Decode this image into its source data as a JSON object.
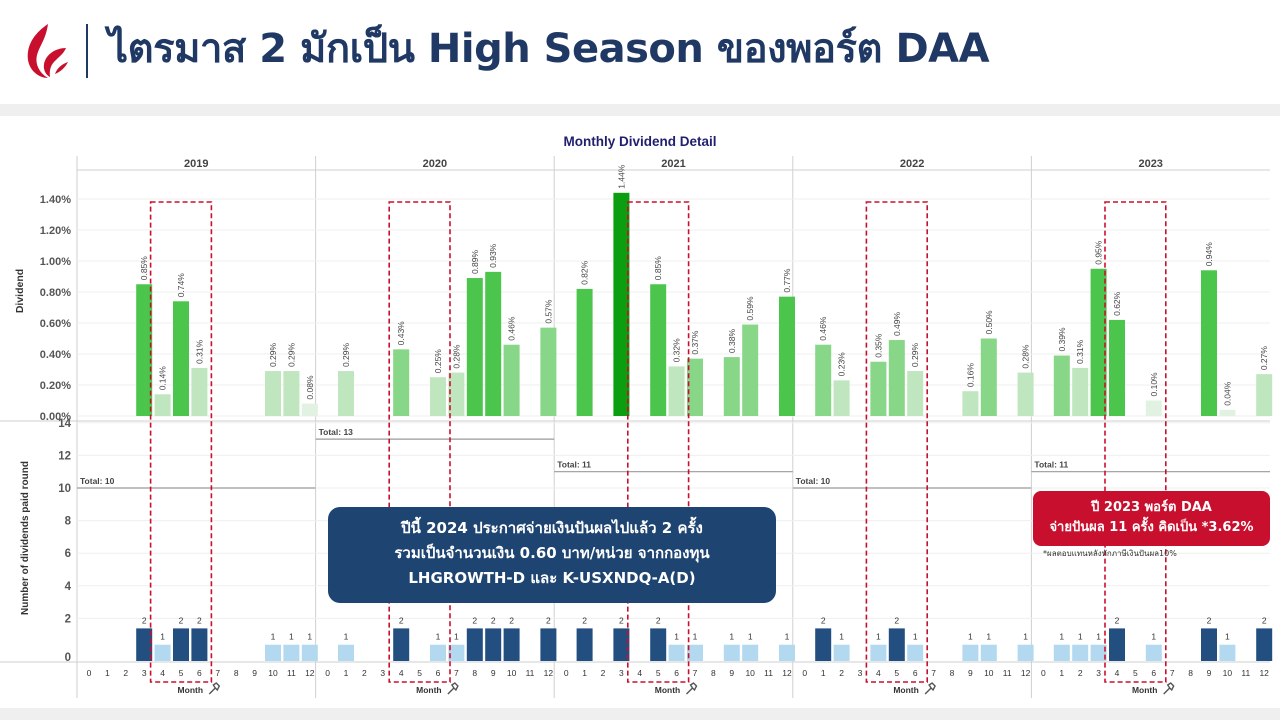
{
  "header": {
    "title": "ไตรมาส 2 มักเป็น High Season ของพอร์ต DAA"
  },
  "colors": {
    "title": "#1f3864",
    "logo": "#c8102e",
    "bar_green_dark": "#0a9e10",
    "bar_green": "#4cc54c",
    "bar_green_light": "#88d688",
    "bar_green_pale": "#bfe6bf",
    "bar_green_faint": "#e2f2e2",
    "count_dark": "#234e80",
    "count_light": "#b3d9f0",
    "highlight": "#c8102e"
  },
  "chart_data": {
    "type": "bar",
    "title": "Monthly Dividend Detail",
    "years": [
      "2019",
      "2020",
      "2021",
      "2022",
      "2023"
    ],
    "month_ticks": [
      "0",
      "1",
      "2",
      "3",
      "4",
      "5",
      "6",
      "7",
      "8",
      "9",
      "10",
      "11",
      "12"
    ],
    "xlabel": "Month",
    "top_panel": {
      "ylabel": "Dividend",
      "y_ticks": [
        "0.00%",
        "0.20%",
        "0.40%",
        "0.60%",
        "0.80%",
        "1.00%",
        "1.20%",
        "1.40%"
      ],
      "ylim": [
        0,
        1.6
      ],
      "series": [
        {
          "year": "2019",
          "points": [
            {
              "m": 3,
              "v": 0.85
            },
            {
              "m": 4,
              "v": 0.14
            },
            {
              "m": 5,
              "v": 0.74
            },
            {
              "m": 6,
              "v": 0.31
            },
            {
              "m": 10,
              "v": 0.29
            },
            {
              "m": 11,
              "v": 0.29
            },
            {
              "m": 12,
              "v": 0.08
            }
          ]
        },
        {
          "year": "2020",
          "points": [
            {
              "m": 1,
              "v": 0.29
            },
            {
              "m": 4,
              "v": 0.43
            },
            {
              "m": 6,
              "v": 0.25
            },
            {
              "m": 7,
              "v": 0.28
            },
            {
              "m": 8,
              "v": 0.89
            },
            {
              "m": 9,
              "v": 0.93
            },
            {
              "m": 10,
              "v": 0.46
            },
            {
              "m": 12,
              "v": 0.57
            }
          ]
        },
        {
          "year": "2021",
          "points": [
            {
              "m": 1,
              "v": 0.82
            },
            {
              "m": 3,
              "v": 1.44
            },
            {
              "m": 5,
              "v": 0.85
            },
            {
              "m": 6,
              "v": 0.32
            },
            {
              "m": 7,
              "v": 0.37
            },
            {
              "m": 9,
              "v": 0.38
            },
            {
              "m": 10,
              "v": 0.59
            },
            {
              "m": 12,
              "v": 0.77
            }
          ]
        },
        {
          "year": "2022",
          "points": [
            {
              "m": 1,
              "v": 0.46
            },
            {
              "m": 2,
              "v": 0.23
            },
            {
              "m": 4,
              "v": 0.35
            },
            {
              "m": 5,
              "v": 0.49
            },
            {
              "m": 6,
              "v": 0.29
            },
            {
              "m": 9,
              "v": 0.16
            },
            {
              "m": 10,
              "v": 0.5
            },
            {
              "m": 12,
              "v": 0.28
            }
          ]
        },
        {
          "year": "2023",
          "points": [
            {
              "m": 1,
              "v": 0.39
            },
            {
              "m": 2,
              "v": 0.31
            },
            {
              "m": 3,
              "v": 0.95
            },
            {
              "m": 4,
              "v": 0.62
            },
            {
              "m": 6,
              "v": 0.1
            },
            {
              "m": 9,
              "v": 0.94
            },
            {
              "m": 10,
              "v": 0.04
            },
            {
              "m": 12,
              "v": 0.27
            }
          ]
        }
      ]
    },
    "bottom_panel": {
      "ylabel": "Number of dividends paid round",
      "y_ticks": [
        "0",
        "2",
        "4",
        "6",
        "8",
        "10",
        "12",
        "14"
      ],
      "ylim": [
        0,
        15
      ],
      "series": [
        {
          "year": "2019",
          "total": 10,
          "total_label": "Total: 10",
          "points": [
            {
              "m": 3,
              "c": 2
            },
            {
              "m": 4,
              "c": 1
            },
            {
              "m": 5,
              "c": 2
            },
            {
              "m": 6,
              "c": 2
            },
            {
              "m": 10,
              "c": 1
            },
            {
              "m": 11,
              "c": 1
            },
            {
              "m": 12,
              "c": 1
            }
          ]
        },
        {
          "year": "2020",
          "total": 13,
          "total_label": "Total: 13",
          "points": [
            {
              "m": 1,
              "c": 1
            },
            {
              "m": 4,
              "c": 2
            },
            {
              "m": 6,
              "c": 1
            },
            {
              "m": 7,
              "c": 1
            },
            {
              "m": 8,
              "c": 2
            },
            {
              "m": 9,
              "c": 2
            },
            {
              "m": 10,
              "c": 2
            },
            {
              "m": 12,
              "c": 2
            }
          ]
        },
        {
          "year": "2021",
          "total": 11,
          "total_label": "Total: 11",
          "points": [
            {
              "m": 1,
              "c": 2
            },
            {
              "m": 3,
              "c": 2
            },
            {
              "m": 5,
              "c": 2
            },
            {
              "m": 6,
              "c": 1
            },
            {
              "m": 7,
              "c": 1
            },
            {
              "m": 9,
              "c": 1
            },
            {
              "m": 10,
              "c": 1
            },
            {
              "m": 12,
              "c": 1
            }
          ]
        },
        {
          "year": "2022",
          "total": 10,
          "total_label": "Total: 10",
          "points": [
            {
              "m": 1,
              "c": 2
            },
            {
              "m": 2,
              "c": 1
            },
            {
              "m": 4,
              "c": 1
            },
            {
              "m": 5,
              "c": 2
            },
            {
              "m": 6,
              "c": 1
            },
            {
              "m": 9,
              "c": 1
            },
            {
              "m": 10,
              "c": 1
            },
            {
              "m": 12,
              "c": 1
            }
          ]
        },
        {
          "year": "2023",
          "total": 11,
          "total_label": "Total: 11",
          "points": [
            {
              "m": 1,
              "c": 1
            },
            {
              "m": 2,
              "c": 1
            },
            {
              "m": 3,
              "c": 1
            },
            {
              "m": 4,
              "c": 2
            },
            {
              "m": 6,
              "c": 1
            },
            {
              "m": 9,
              "c": 2
            },
            {
              "m": 10,
              "c": 1
            },
            {
              "m": 12,
              "c": 2
            }
          ]
        }
      ]
    },
    "highlight_months": [
      4,
      6
    ],
    "pin_icon": "pin-icon"
  },
  "callouts": {
    "main": {
      "line1": "ปีนี้ 2024 ประกาศจ่ายเงินปันผลไปแล้ว 2 ครั้ง",
      "line2": "รวมเป็นจำนวนเงิน 0.60 บาท/หน่วย จากกองทุน",
      "line3": "LHGROWTH-D และ K-USXNDQ-A(D)"
    },
    "summary": {
      "line1": "ปี 2023 พอร์ต DAA",
      "line2": "จ่ายปันผล 11 ครั้ง คิดเป็น *3.62%"
    },
    "footnote": "*ผลตอบแทนหลังหักภาษีเงินปันผล10%"
  }
}
